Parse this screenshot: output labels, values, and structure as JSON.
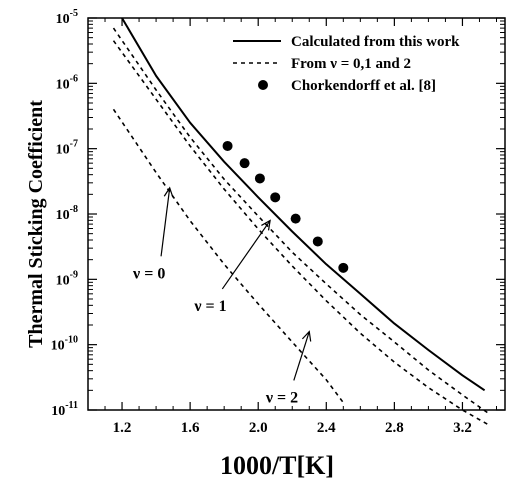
{
  "chart_data": {
    "type": "line",
    "xlabel": "1000/T[K]",
    "ylabel": "Thermal Sticking Coefficient",
    "xlim": [
      1.0,
      3.45
    ],
    "ylim_log10": [
      -11,
      -5
    ],
    "yscale": "log",
    "grid": false,
    "legend_position": "top-right",
    "x_ticks": [
      {
        "value": 1.2,
        "label": "1.2"
      },
      {
        "value": 1.6,
        "label": "1.6"
      },
      {
        "value": 2.0,
        "label": "2.0"
      },
      {
        "value": 2.4,
        "label": "2.4"
      },
      {
        "value": 2.8,
        "label": "2.8"
      },
      {
        "value": 3.2,
        "label": "3.2"
      }
    ],
    "y_ticks": [
      {
        "exp": -5,
        "base": "10",
        "power": "-5"
      },
      {
        "exp": -6,
        "base": "10",
        "power": "-6"
      },
      {
        "exp": -7,
        "base": "10",
        "power": "-7"
      },
      {
        "exp": -8,
        "base": "10",
        "power": "-8"
      },
      {
        "exp": -9,
        "base": "10",
        "power": "-9"
      },
      {
        "exp": -10,
        "base": "10",
        "power": "-10"
      },
      {
        "exp": -11,
        "base": "10",
        "power": "-11"
      }
    ],
    "series": [
      {
        "name": "Calculated from this work",
        "style": "solid",
        "x": [
          1.2,
          1.4,
          1.6,
          1.8,
          2.0,
          2.2,
          2.4,
          2.6,
          2.8,
          3.0,
          3.2,
          3.33
        ],
        "y": [
          1e-05,
          1.3e-06,
          2.5e-07,
          6.3e-08,
          1.8e-08,
          5.4e-09,
          1.7e-09,
          6e-10,
          2.1e-10,
          8.3e-11,
          3.4e-11,
          2e-11
        ]
      },
      {
        "name": "From ν = 0,1 and 2",
        "style": "dotted",
        "x": [
          1.15,
          1.4,
          1.6,
          1.8,
          2.0,
          2.2,
          2.4,
          2.6,
          2.8,
          3.0,
          3.2,
          3.35
        ],
        "y": [
          7e-06,
          7.9e-07,
          1.5e-07,
          3.4e-08,
          9.3e-09,
          2.6e-09,
          8.5e-10,
          2.9e-10,
          1.1e-10,
          4.1e-11,
          1.7e-11,
          9e-12
        ]
      },
      {
        "name": "ν = 1",
        "style": "dotted",
        "x": [
          1.15,
          1.4,
          1.6,
          1.8,
          2.0,
          2.2,
          2.4,
          2.6,
          2.8,
          3.0,
          3.2,
          3.35
        ],
        "y": [
          4.5e-06,
          5.7e-07,
          1.1e-07,
          2.4e-08,
          5.9e-09,
          1.6e-09,
          4.7e-10,
          1.5e-10,
          5.4e-11,
          2.2e-11,
          1e-11,
          6e-12
        ]
      },
      {
        "name": "ν = 0",
        "style": "dotted",
        "x": [
          1.15,
          1.4,
          1.6,
          1.8,
          2.0,
          2.2,
          2.4,
          2.5
        ],
        "y": [
          4e-07,
          4.3e-08,
          7.9e-09,
          1.7e-09,
          4.2e-10,
          1.1e-10,
          2.9e-11,
          1.3e-11
        ]
      },
      {
        "name": "Chorkendorff et al. [8]",
        "style": "markers",
        "x": [
          1.82,
          1.92,
          2.01,
          2.1,
          2.22,
          2.35,
          2.5
        ],
        "y": [
          1.1e-07,
          6e-08,
          3.5e-08,
          1.8e-08,
          8.5e-09,
          3.8e-09,
          1.5e-09
        ]
      }
    ],
    "legend": [
      {
        "label": "Calculated from this work",
        "style": "solid"
      },
      {
        "label": "From ν = 0,1 and 2",
        "style": "dotted"
      },
      {
        "label": "Chorkendorff et al. [8]",
        "style": "markers"
      }
    ],
    "annotations": [
      {
        "text": "ν = 0",
        "tip_x": 1.48,
        "tip_exp": -7.6,
        "label_x": 1.3,
        "label_exp": -8.8
      },
      {
        "text": "ν = 1",
        "tip_x": 2.07,
        "tip_exp": -8.1,
        "label_x": 1.66,
        "label_exp": -9.3
      },
      {
        "text": "ν = 2",
        "tip_x": 2.3,
        "tip_exp": -9.8,
        "label_x": 2.08,
        "label_exp": -10.7
      }
    ],
    "colors": {
      "line": "#000000",
      "background": "#ffffff"
    }
  }
}
